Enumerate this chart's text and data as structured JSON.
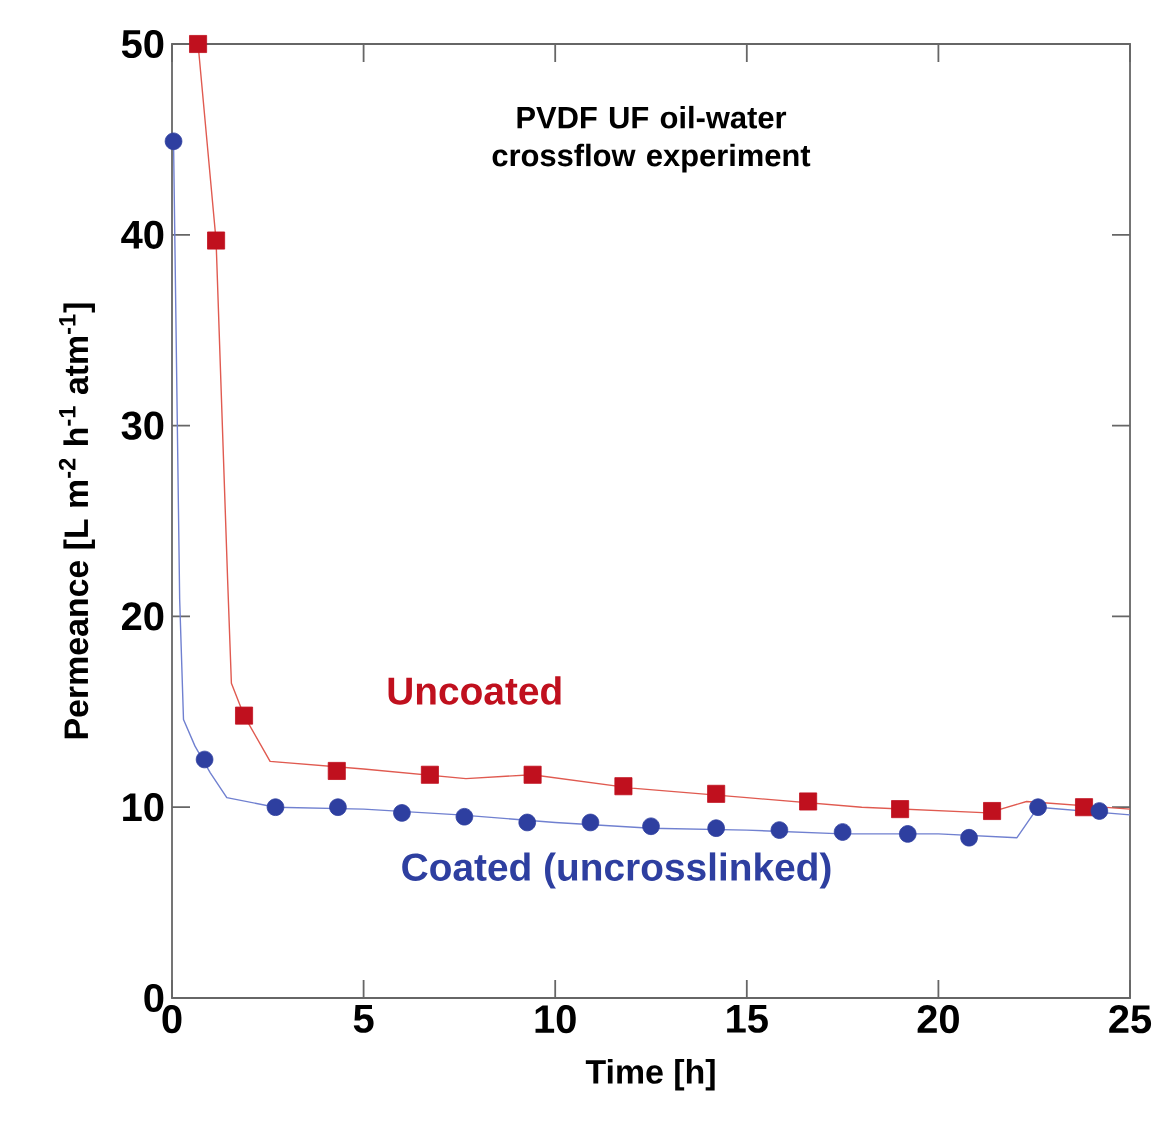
{
  "chart_data": {
    "type": "line",
    "title": "PVDF UF oil-water crossflow experiment",
    "xlabel": "Time [h]",
    "ylabel": "Permeance [L m$^{-2}$ h$^{-1}$ atm$^{-1}$]",
    "xlim": [
      0,
      25
    ],
    "ylim": [
      0,
      50
    ],
    "xticks": [
      0,
      5,
      10,
      15,
      20,
      25
    ],
    "yticks": [
      0,
      10,
      20,
      30,
      40,
      50
    ],
    "grid": false,
    "series": [
      {
        "color": "#e05a50",
        "marker": "none",
        "x": [
          0.68,
          1.15,
          1.45,
          1.55,
          1.88,
          2.56,
          5.0,
          7.67,
          9.4,
          12.0,
          15.0,
          18.0,
          21.3,
          22.3,
          25.0
        ],
        "values": [
          50,
          39.7,
          22,
          16.5,
          14.8,
          12.4,
          12.0,
          11.5,
          11.7,
          11.0,
          10.5,
          10.0,
          9.7,
          10.3,
          9.9
        ]
      },
      {
        "color": "#7080d0",
        "marker": "none",
        "x": [
          0.04,
          0.2,
          0.3,
          0.6,
          1.0,
          1.43,
          2.7,
          5.0,
          7.5,
          10.0,
          12.5,
          15.0,
          17.5,
          20.0,
          22.05,
          22.6,
          25.0
        ],
        "values": [
          44.9,
          20.9,
          14.6,
          13.2,
          11.8,
          10.5,
          10.0,
          9.9,
          9.6,
          9.2,
          8.9,
          8.8,
          8.6,
          8.6,
          8.4,
          10.0,
          9.6
        ]
      },
      {
        "type": "scatter",
        "name": "Uncoated",
        "color": "#c0101e",
        "marker": "square",
        "x": [
          0.68,
          1.15,
          1.88,
          4.3,
          6.73,
          9.41,
          11.78,
          14.2,
          16.6,
          19.0,
          21.4,
          23.8
        ],
        "values": [
          50,
          39.7,
          14.8,
          11.9,
          11.7,
          11.7,
          11.1,
          10.7,
          10.3,
          9.9,
          9.8,
          10.0
        ]
      },
      {
        "type": "scatter",
        "name": "Coated (uncrosslinked)",
        "color": "#2e3fa0",
        "marker": "circle",
        "x": [
          0.04,
          0.85,
          2.7,
          4.33,
          6.0,
          7.63,
          9.27,
          10.92,
          12.5,
          14.2,
          15.85,
          17.5,
          19.2,
          20.8,
          22.6,
          24.2
        ],
        "values": [
          44.9,
          12.5,
          10.0,
          10.0,
          9.7,
          9.5,
          9.2,
          9.2,
          9.0,
          8.9,
          8.8,
          8.7,
          8.6,
          8.4,
          10.0,
          9.8
        ]
      }
    ]
  }
}
